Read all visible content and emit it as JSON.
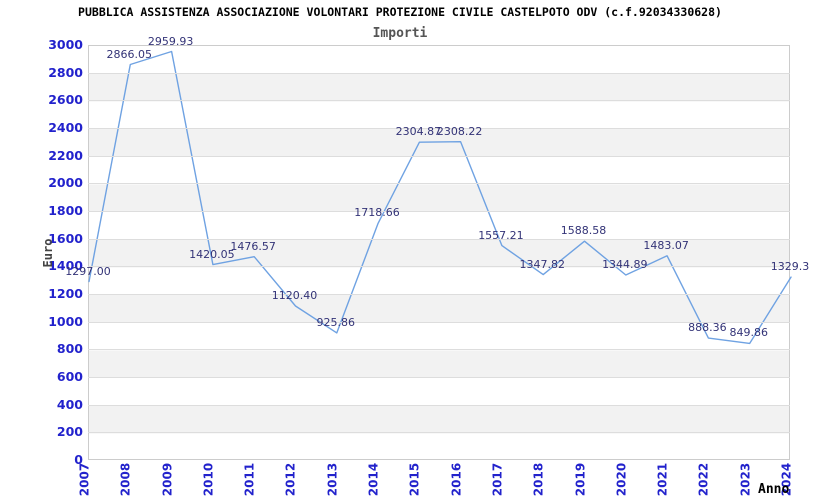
{
  "chart_data": {
    "type": "line",
    "title": "PUBBLICA ASSISTENZA ASSOCIAZIONE VOLONTARI PROTEZIONE CIVILE CASTELPOTO ODV (c.f.92034330628)",
    "subtitle": "Importi",
    "xlabel": "Anno",
    "ylabel": "Euro",
    "categories": [
      "2007",
      "2008",
      "2009",
      "2010",
      "2011",
      "2012",
      "2013",
      "2014",
      "2015",
      "2016",
      "2017",
      "2018",
      "2019",
      "2020",
      "2021",
      "2022",
      "2023",
      "2024"
    ],
    "values": [
      1297.0,
      2866.05,
      2959.93,
      1420.05,
      1476.57,
      1120.4,
      925.86,
      1718.66,
      2304.87,
      2308.22,
      1557.21,
      1347.82,
      1588.58,
      1344.89,
      1483.07,
      888.36,
      849.86,
      1329.3
    ],
    "point_labels": [
      "1297.00",
      "2866.05",
      "2959.93",
      "1420.05",
      "1476.57",
      "1120.40",
      "925.86",
      "1718.66",
      "2304.87",
      "2308.22",
      "1557.21",
      "1347.82",
      "1588.58",
      "1344.89",
      "1483.07",
      "888.36",
      "849.86",
      "1329.3"
    ],
    "ylim": [
      0,
      3000
    ],
    "ytick_step": 200,
    "grid": "alternating-horizontal-bands",
    "legend": "none",
    "colors": {
      "line": "#6FA2E2",
      "data_label": "#333377",
      "tick_label": "#2222CC",
      "title": "#000000",
      "subtitle": "#555555",
      "band_gray": "#F2F2F2",
      "band_white": "#FFFFFF",
      "gridline": "#DDDDDD",
      "plot_border": "#CCCCCC"
    }
  }
}
